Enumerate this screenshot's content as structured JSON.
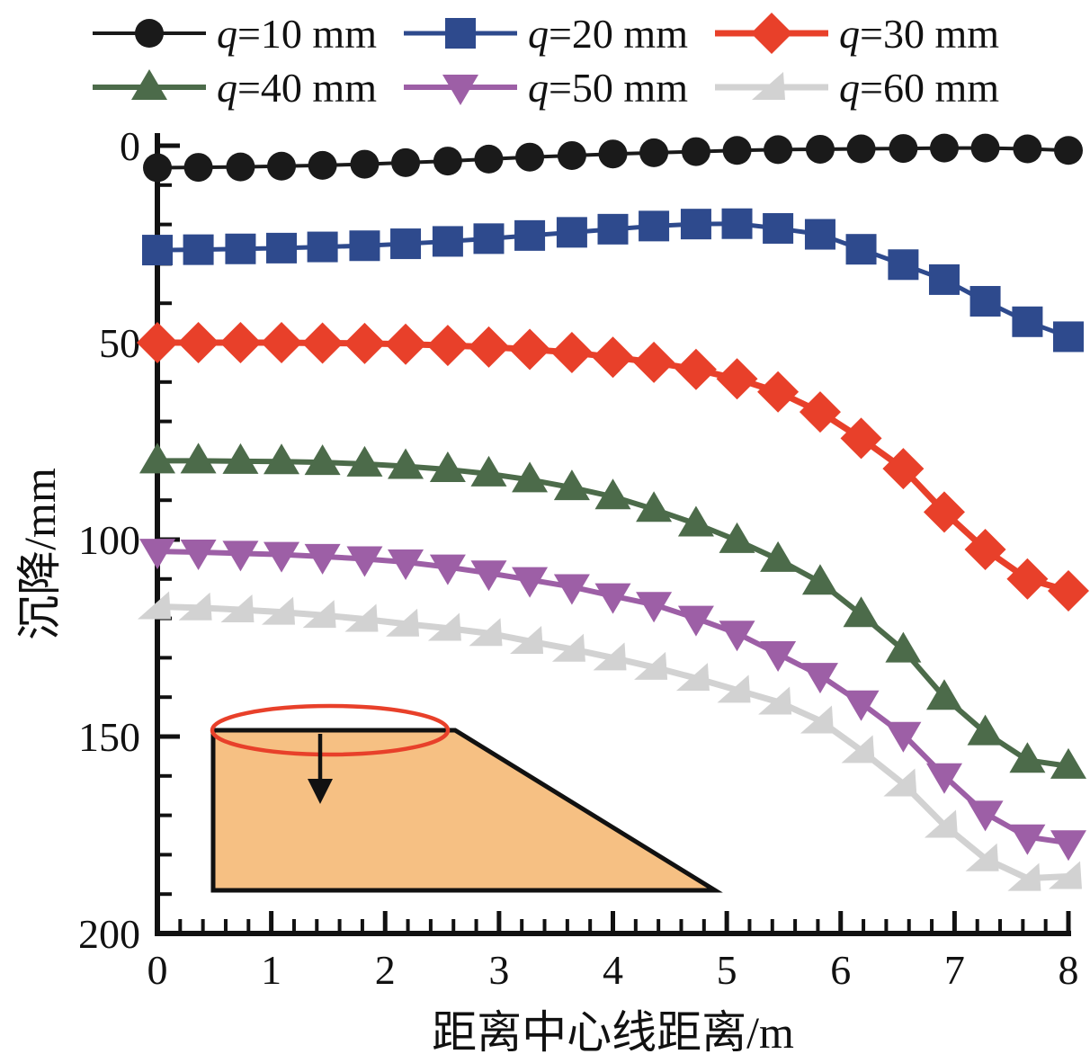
{
  "chart_data": {
    "type": "line",
    "title": "",
    "xlabel": "距离中心线距离/m",
    "ylabel": "沉降/mm",
    "xlim": [
      0,
      8
    ],
    "ylim": [
      0,
      200
    ],
    "y_axis_inverted": true,
    "grid": false,
    "legend_position": "top",
    "x_major_ticks": [
      0,
      1,
      2,
      3,
      4,
      5,
      6,
      7,
      8
    ],
    "y_major_ticks": [
      0,
      50,
      100,
      150,
      200
    ],
    "x_minor_step": 0.2,
    "y_minor_step": 10,
    "x": [
      0,
      0.36,
      0.73,
      1.09,
      1.45,
      1.82,
      2.18,
      2.55,
      2.91,
      3.27,
      3.64,
      4.0,
      4.36,
      4.73,
      5.09,
      5.45,
      5.82,
      6.18,
      6.55,
      6.91,
      7.27,
      7.64,
      8.0
    ],
    "series": [
      {
        "name": "q=10 mm",
        "marker": "circle",
        "color": "#1a1a1a",
        "line_width": 4,
        "values": [
          5.6,
          5.5,
          5.4,
          5.2,
          5.0,
          4.7,
          4.3,
          3.9,
          3.4,
          2.9,
          2.5,
          2.1,
          1.8,
          1.5,
          1.2,
          1.0,
          0.9,
          0.8,
          0.7,
          0.6,
          0.6,
          0.8,
          1.2
        ]
      },
      {
        "name": "q=20 mm",
        "marker": "square",
        "color": "#2e4a8d",
        "line_width": 5,
        "values": [
          26.5,
          26.4,
          26.2,
          26.0,
          25.7,
          25.4,
          24.9,
          24.3,
          23.6,
          22.8,
          22.0,
          21.2,
          20.4,
          19.9,
          19.8,
          21.0,
          22.5,
          26.3,
          30.2,
          34.0,
          39.5,
          44.7,
          48.5
        ]
      },
      {
        "name": "q=30 mm",
        "marker": "diamond",
        "color": "#e8402a",
        "line_width": 7,
        "values": [
          50.0,
          50.0,
          50.0,
          50.0,
          50.1,
          50.2,
          50.4,
          50.7,
          51.1,
          51.7,
          52.5,
          53.7,
          55.0,
          56.8,
          59.2,
          62.5,
          67.6,
          74.3,
          82.0,
          93.0,
          102.5,
          110.0,
          113.0
        ]
      },
      {
        "name": "q=40 mm",
        "marker": "triangle-up",
        "color": "#4c6b4a",
        "line_width": 6,
        "values": [
          80.0,
          80.0,
          80.1,
          80.2,
          80.4,
          80.8,
          81.4,
          82.2,
          83.3,
          84.8,
          86.8,
          89.1,
          92.3,
          96.0,
          100.2,
          105.0,
          110.8,
          119.0,
          128.0,
          140.0,
          149.0,
          156.0,
          157.5
        ]
      },
      {
        "name": "q=50 mm",
        "marker": "triangle-down",
        "color": "#9d5fa6",
        "line_width": 6,
        "values": [
          103.0,
          103.2,
          103.5,
          103.8,
          104.3,
          104.9,
          105.7,
          107.0,
          108.5,
          110.2,
          112.0,
          114.3,
          116.5,
          120.0,
          123.8,
          129.0,
          134.5,
          141.5,
          149.5,
          160.0,
          169.5,
          175.5,
          177.0
        ]
      },
      {
        "name": "q=60 mm",
        "marker": "triangle-left",
        "color": "#d2d2d2",
        "line_width": 7,
        "values": [
          117.0,
          117.3,
          117.8,
          118.4,
          119.2,
          120.2,
          121.4,
          122.5,
          123.8,
          125.8,
          127.8,
          130.0,
          132.4,
          135.2,
          138.2,
          141.2,
          146.0,
          153.5,
          162.0,
          172.5,
          181.0,
          186.0,
          185.5
        ]
      }
    ],
    "inset": {
      "description": "embankment cross-section sketch with loaded area ellipse and downward load arrow",
      "fill_color": "#f6c083",
      "outline_color": "#111111",
      "ellipse_color": "#e8402a",
      "arrow_color": "#111111"
    }
  }
}
